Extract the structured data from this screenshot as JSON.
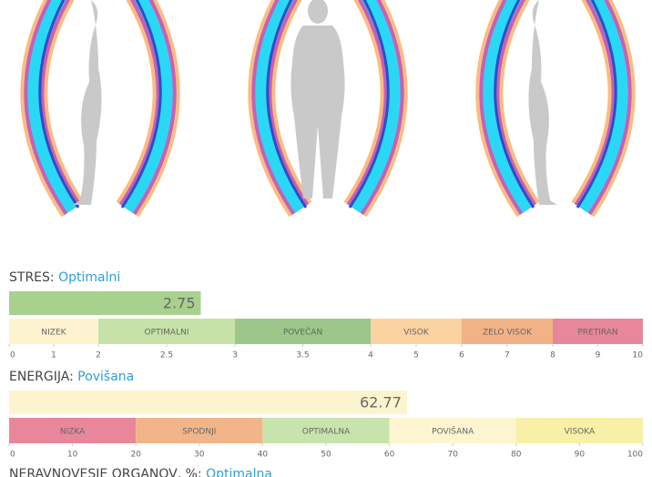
{
  "gauges": [
    {
      "label": "STRES:",
      "status": "Optimalni",
      "value": 2.75,
      "bar_color": "#a9d18e",
      "bounds": [
        0,
        2,
        3,
        4,
        6,
        8,
        10
      ],
      "segments": [
        {
          "label": "NIZEK",
          "color": "#fdf3cf"
        },
        {
          "label": "OPTIMALNI",
          "color": "#c6e2a9"
        },
        {
          "label": "POVEČAN",
          "color": "#9cc68a"
        },
        {
          "label": "VISOK",
          "color": "#fbd3a0"
        },
        {
          "label": "ZELO VISOK",
          "color": "#f1b386"
        },
        {
          "label": "PRETIRAN",
          "color": "#e7879b"
        }
      ],
      "ticks": [
        0,
        1,
        2,
        2.5,
        3,
        3.5,
        4,
        5,
        6,
        7,
        8,
        9,
        10
      ]
    },
    {
      "label": "ENERGIJA:",
      "status": "Povišana",
      "value": 62.77,
      "bar_color": "#fcf4cf",
      "bounds": [
        0,
        20,
        40,
        60,
        80,
        100
      ],
      "segments": [
        {
          "label": "NIZKA",
          "color": "#e8879a"
        },
        {
          "label": "SPODNJI",
          "color": "#f2b58a"
        },
        {
          "label": "OPTIMALNA",
          "color": "#c8e4ad"
        },
        {
          "label": "POVIŠANA",
          "color": "#fdf5d0"
        },
        {
          "label": "VISOKA",
          "color": "#f8f0a6"
        }
      ],
      "ticks": [
        0,
        10,
        20,
        30,
        40,
        50,
        60,
        70,
        80,
        90,
        100
      ]
    }
  ],
  "next_heading": {
    "label": "NERAVNOVESJE ORGANOV, %:",
    "status": "Optimalna"
  }
}
